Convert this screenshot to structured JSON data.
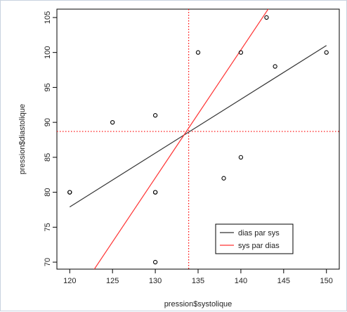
{
  "chart_data": {
    "type": "scatter",
    "xlabel": "pression$systolique",
    "ylabel": "pression$diastolique",
    "xlim": [
      118.5,
      151.5
    ],
    "ylim": [
      69.0,
      106.2
    ],
    "x_ticks": [
      120,
      125,
      130,
      135,
      140,
      145,
      150
    ],
    "y_ticks": [
      70,
      75,
      80,
      85,
      90,
      95,
      100,
      105
    ],
    "points": [
      {
        "x": 120,
        "y": 80
      },
      {
        "x": 120,
        "y": 80
      },
      {
        "x": 125,
        "y": 90
      },
      {
        "x": 130,
        "y": 91
      },
      {
        "x": 130,
        "y": 80
      },
      {
        "x": 130,
        "y": 80
      },
      {
        "x": 130,
        "y": 70
      },
      {
        "x": 135,
        "y": 100
      },
      {
        "x": 138,
        "y": 82
      },
      {
        "x": 140,
        "y": 100
      },
      {
        "x": 140,
        "y": 85
      },
      {
        "x": 143,
        "y": 105
      },
      {
        "x": 144,
        "y": 98
      },
      {
        "x": 150,
        "y": 100
      }
    ],
    "reference_lines": {
      "vertical_x": 133.9,
      "horizontal_y": 88.7,
      "color": "#ff0000",
      "style": "dotted"
    },
    "series": [
      {
        "name": "dias par sys",
        "color": "#333333",
        "x": [
          120,
          150
        ],
        "y": [
          77.9,
          101.0
        ]
      },
      {
        "name": "sys par dias",
        "color": "#ff3333",
        "x": [
          122.6,
          143.9
        ],
        "y": [
          68.5,
          107.5
        ]
      }
    ],
    "legend": {
      "position": "bottom-right",
      "entries": [
        "dias par sys",
        "sys par dias"
      ]
    },
    "grid": false
  }
}
